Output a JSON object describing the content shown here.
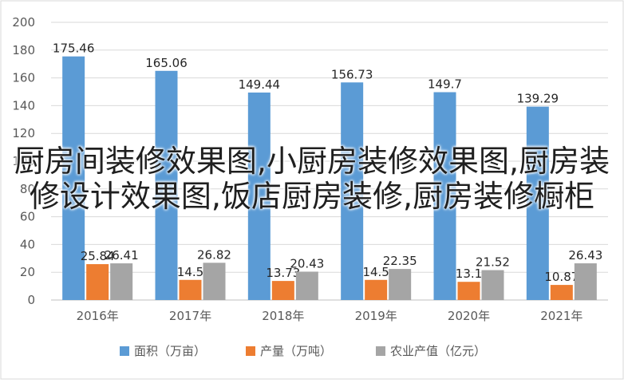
{
  "chart_data": {
    "type": "bar",
    "categories": [
      "2016年",
      "2017年",
      "2018年",
      "2019年",
      "2020年",
      "2021年"
    ],
    "series": [
      {
        "name": "面积（万亩）",
        "color": "#5b9bd5",
        "values": [
          175.46,
          165.06,
          149.44,
          156.73,
          149.7,
          139.29
        ]
      },
      {
        "name": "产量（万吨）",
        "color": "#ed7d31",
        "values": [
          25.84,
          14.5,
          13.73,
          14.5,
          13.1,
          10.87
        ]
      },
      {
        "name": "农业产值（亿元）",
        "color": "#a5a5a5",
        "values": [
          26.41,
          26.82,
          20.43,
          22.35,
          21.52,
          26.43
        ]
      }
    ],
    "value_labels": [
      [
        "175.46",
        "165.06",
        "149.44",
        "156.73",
        "149.7",
        "139.29"
      ],
      [
        "25.84",
        "14.5",
        "13.73",
        "14.5",
        "13.1",
        "10.87"
      ],
      [
        "26.41",
        "26.82",
        "20.43",
        "22.35",
        "21.52",
        "26.43"
      ]
    ],
    "ylim": [
      0,
      200
    ],
    "yticks": [
      0,
      20,
      40,
      60,
      80,
      100,
      120,
      140,
      160,
      180,
      200
    ],
    "grid": true,
    "legend_position": "bottom",
    "title": "",
    "xlabel": "",
    "ylabel": ""
  },
  "overlay_text": "厨房间装修效果图,小厨房装修效果图,厨房装修设计效果图,饭店厨房装修,厨房装修橱柜"
}
